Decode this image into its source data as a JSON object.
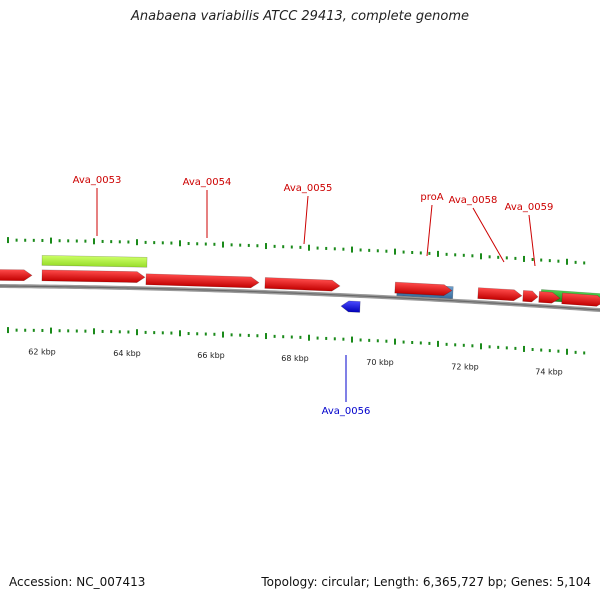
{
  "title": "Anabaena variabilis ATCC 29413, complete genome",
  "footer": {
    "accession": "Accession: NC_007413",
    "summary": "Topology: circular; Length: 6,365,727 bp; Genes: 5,104"
  },
  "colors": {
    "cds_forward": "#ee1111",
    "cds_reverse": "#1a1aee",
    "rna": "#4f86b8",
    "highlight_yellow_green": "#b5f542",
    "highlight_green": "#2eaa2e",
    "ticks": "#1a8a1a",
    "backbone": "#8a8a8a",
    "label_forward": "#cc0000",
    "label_reverse": "#0000cc"
  },
  "scale_labels": [
    "62 kbp",
    "64 kbp",
    "66 kbp",
    "68 kbp",
    "70 kbp",
    "72 kbp",
    "74 kbp"
  ],
  "gene_labels": {
    "forward": [
      "Ava_0053",
      "Ava_0054",
      "Ava_0055",
      "proA",
      "Ava_0058",
      "Ava_0059"
    ],
    "reverse": [
      "Ava_0056"
    ]
  }
}
